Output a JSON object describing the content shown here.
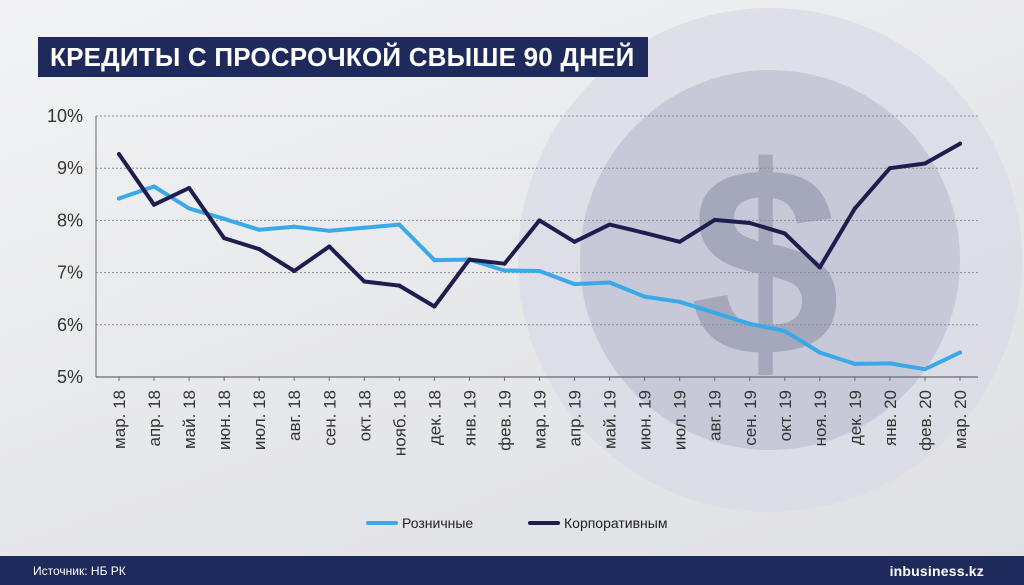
{
  "title": "КРЕДИТЫ С ПРОСРОЧКОЙ СВЫШЕ 90 ДНЕЙ",
  "source": "Источник: НБ РК",
  "brand": {
    "prefix": "in",
    "name": "business.kz"
  },
  "decor": {
    "symbol": "$"
  },
  "colors": {
    "retail": "#3aa9ea",
    "corporate": "#1f1d4f",
    "title_bg": "#1f2a5c",
    "footer_bg": "#1f2a5c"
  },
  "chart_data": {
    "type": "line",
    "title": "КРЕДИТЫ С ПРОСРОЧКОЙ СВЫШЕ 90 ДНЕЙ",
    "categories": [
      "мар. 18",
      "апр. 18",
      "май. 18",
      "июн. 18",
      "июл. 18",
      "авг. 18",
      "сен. 18",
      "окт. 18",
      "нояб. 18",
      "дек. 18",
      "янв. 19",
      "фев. 19",
      "мар. 19",
      "апр. 19",
      "май. 19",
      "июн. 19",
      "июл. 19",
      "авг. 19",
      "сен. 19",
      "окт. 19",
      "ноя. 19",
      "дек. 19",
      "янв. 20",
      "фев. 20",
      "мар. 20"
    ],
    "y_ticks": [
      "5%",
      "6%",
      "7%",
      "8%",
      "9%",
      "10%"
    ],
    "ylim": [
      5,
      10
    ],
    "grid": true,
    "legend_position": "bottom",
    "series": [
      {
        "name": "Розничные",
        "color": "#3aa9ea",
        "values": [
          8.42,
          8.65,
          8.23,
          8.03,
          7.82,
          7.88,
          7.8,
          7.86,
          7.92,
          7.24,
          7.25,
          7.04,
          7.03,
          6.78,
          6.81,
          6.54,
          6.44,
          6.23,
          6.02,
          5.88,
          5.47,
          5.25,
          5.26,
          5.15,
          5.47
        ]
      },
      {
        "name": "Корпоративным",
        "color": "#1f1d4f",
        "values": [
          9.27,
          8.3,
          8.62,
          7.66,
          7.45,
          7.03,
          7.5,
          6.83,
          6.75,
          6.35,
          7.25,
          7.17,
          8.0,
          7.59,
          7.92,
          7.76,
          7.59,
          8.01,
          7.95,
          7.75,
          7.1,
          8.23,
          9.0,
          9.09,
          9.47
        ]
      }
    ]
  }
}
